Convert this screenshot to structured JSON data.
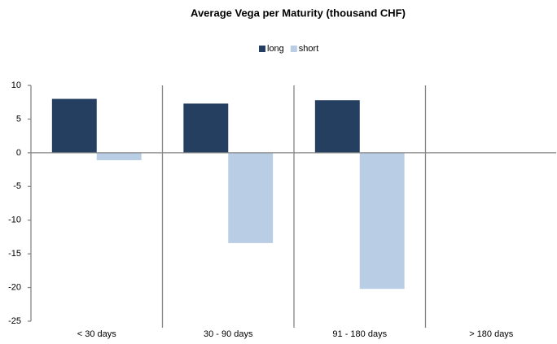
{
  "chart_data": {
    "type": "bar",
    "title": "Average Vega per Maturity (thousand CHF)",
    "categories": [
      "< 30 days",
      "30 - 90 days",
      "91 - 180 days",
      "> 180 days"
    ],
    "series": [
      {
        "name": "long",
        "color": "#243f60",
        "values": [
          8.0,
          7.3,
          7.8,
          0
        ]
      },
      {
        "name": "short",
        "color": "#b9cde5",
        "values": [
          -1.1,
          -13.4,
          -20.2,
          0
        ]
      }
    ],
    "ylim": [
      -25,
      10
    ],
    "yticks": [
      -25,
      -20,
      -15,
      -10,
      -5,
      0,
      5,
      10
    ],
    "grid": false,
    "legend": "top"
  }
}
